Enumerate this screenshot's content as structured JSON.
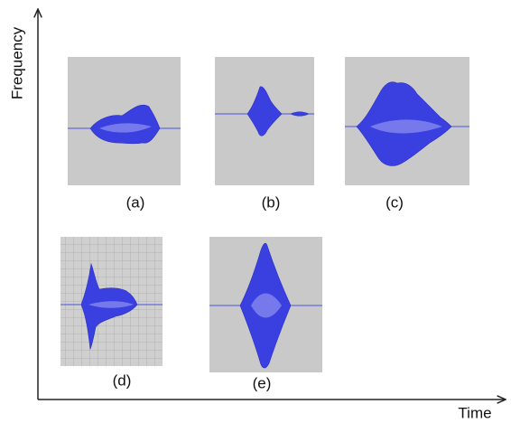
{
  "axes": {
    "y_label": "Frequency",
    "x_label": "Time"
  },
  "panels": [
    {
      "label": "(a)"
    },
    {
      "label": "(b)"
    },
    {
      "label": "(c)"
    },
    {
      "label": "(d)"
    },
    {
      "label": "(e)"
    }
  ]
}
